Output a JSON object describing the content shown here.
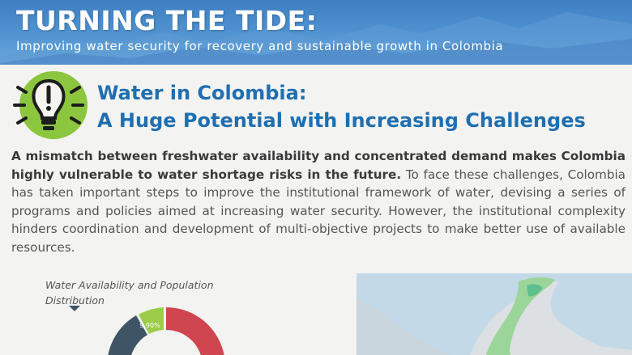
{
  "banner": {
    "title": "TURNING THE TIDE:",
    "subtitle": "Improving water security for recovery and sustainable growth in Colombia"
  },
  "section": {
    "heading_line1": "Water in Colombia:",
    "heading_line2": "A Huge Potential with Increasing Challenges",
    "icon": "lightbulb-icon"
  },
  "body": {
    "bold": "A mismatch between freshwater availability and concentrated demand makes Colombia highly vulnerable to water shortage risks in the future.",
    "rest": " To face these challenges, Colombia has taken important steps to improve the institutional framework of water, devising a series of programs and policies aimed at increasing water security. However, the institutional complexity hinders coordination and development of multi-objective projects to make better use of available resources."
  },
  "chart": {
    "title_line1": "Water Availability and Population",
    "title_line2": "Distribution",
    "segment_label": "9.90%"
  },
  "colors": {
    "heading": "#1f6fb0",
    "bulb": "#8cc63f",
    "donut_red": "#cf4650",
    "donut_green": "#9ccc4a",
    "donut_slate": "#3f5566"
  }
}
